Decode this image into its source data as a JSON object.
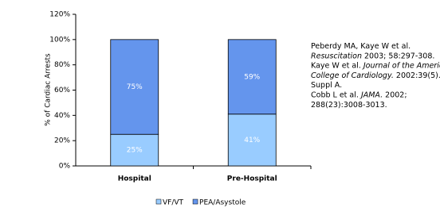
{
  "chart_data": {
    "type": "stacked-bar",
    "y_label": "% of Cardiac Arrests",
    "categories": [
      "Hospital",
      "Pre-Hospital"
    ],
    "series": [
      {
        "name": "VF/VT",
        "color": "#99ccff",
        "values": [
          25,
          41
        ],
        "value_labels": [
          "25%",
          "41%"
        ]
      },
      {
        "name": "PEA/Asystole",
        "color": "#6495ed",
        "values": [
          75,
          59
        ],
        "value_labels": [
          "75%",
          "59%"
        ]
      }
    ],
    "ylim": [
      0,
      120
    ],
    "yticks": [
      {
        "value": 0,
        "label": "0%"
      },
      {
        "value": 20,
        "label": "20%"
      },
      {
        "value": 40,
        "label": "40%"
      },
      {
        "value": 60,
        "label": "60%"
      },
      {
        "value": 80,
        "label": "80%"
      },
      {
        "value": 100,
        "label": "100%"
      },
      {
        "value": 120,
        "label": "120%"
      }
    ],
    "legend": "bottom",
    "annotation_lines": [
      [
        {
          "text": "Peberdy MA, Kaye W et al."
        }
      ],
      [
        {
          "text": "Resuscitation",
          "italic": true
        },
        {
          "text": " 2003; 58:297-308."
        }
      ],
      [
        {
          "text": "Kaye W et al. "
        },
        {
          "text": "Journal of the American",
          "italic": true
        }
      ],
      [
        {
          "text": "College of Cardiology.",
          "italic": true
        },
        {
          "text": " 2002:39(5)."
        }
      ],
      [
        {
          "text": "Suppl A."
        }
      ],
      [
        {
          "text": "Cobb L et al. "
        },
        {
          "text": "JAMA.",
          "italic": true
        },
        {
          "text": " 2002;"
        }
      ],
      [
        {
          "text": "288(23):3008-3013."
        }
      ]
    ]
  }
}
